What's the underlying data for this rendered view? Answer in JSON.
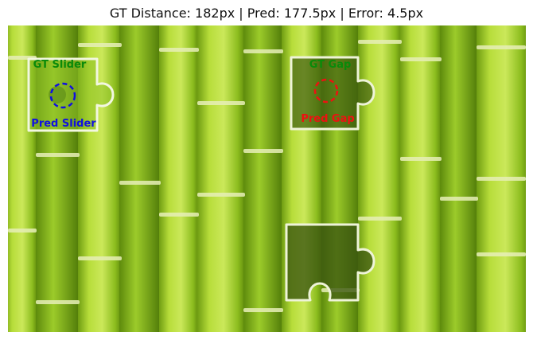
{
  "figure": {
    "title": "GT Distance: 182px | Pred: 177.5px | Error: 4.5px"
  },
  "labels": {
    "gt_slider": "GT Slider",
    "pred_slider": "Pred Slider",
    "gt_gap": "GT Gap",
    "pred_gap": "Pred Gap"
  },
  "colors": {
    "gt": "#0a8a0a",
    "pred_slider": "#1010e0",
    "pred_gap": "#ee1111",
    "background_bamboo": "#9fcf2a"
  }
}
